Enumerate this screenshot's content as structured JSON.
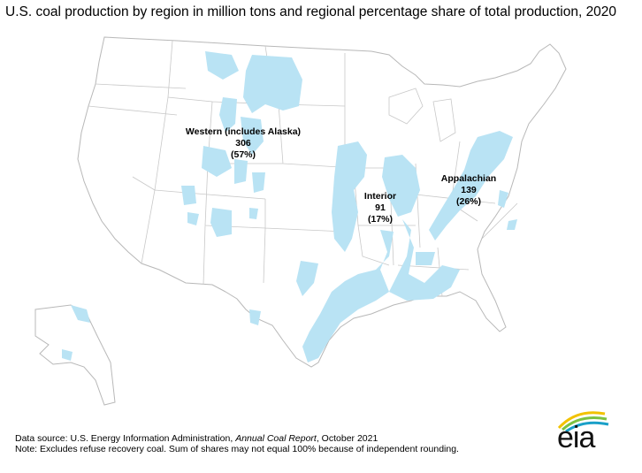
{
  "title": "U.S. coal production by region in million tons and regional percentage share of total production, 2020",
  "regions": [
    {
      "name": "Western (includes Alaska)",
      "value": "306",
      "share": "(57%)"
    },
    {
      "name": "Interior",
      "value": "91",
      "share": "(17%)"
    },
    {
      "name": "Appalachian",
      "value": "139",
      "share": "(26%)"
    }
  ],
  "colors": {
    "coal_region": "#b9e3f4",
    "state_border": "#b8b8b8"
  },
  "footnotes": {
    "source_prefix": "Data source: U.S. Energy Information Administration, ",
    "source_title": "Annual Coal Report",
    "source_suffix": ", October 2021",
    "note": "Note: Excludes refuse recovery coal. Sum of shares may not equal 100% because of independent rounding."
  },
  "logo": {
    "text": "eia",
    "icon": "eia-logo"
  }
}
